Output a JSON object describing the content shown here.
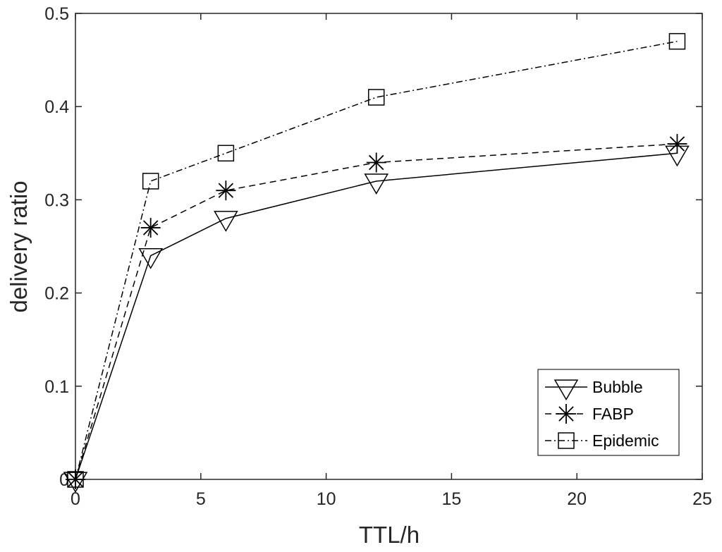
{
  "chart_data": {
    "type": "line",
    "title": "",
    "xlabel": "TTL/h",
    "ylabel": "delivery ratio",
    "xlim": [
      0,
      25
    ],
    "ylim": [
      0,
      0.5
    ],
    "xticks": [
      0,
      5,
      10,
      15,
      20,
      25
    ],
    "yticks": [
      0,
      0.1,
      0.2,
      0.3,
      0.4,
      0.5
    ],
    "xtick_labels": [
      "0",
      "5",
      "10",
      "15",
      "20",
      "25"
    ],
    "ytick_labels": [
      "0",
      "0.1",
      "0.2",
      "0.3",
      "0.4",
      "0.5"
    ],
    "grid": false,
    "legend_position": "bottom-right",
    "x": [
      0,
      3,
      6,
      12,
      24
    ],
    "series": [
      {
        "name": "Bubble",
        "values": [
          0,
          0.24,
          0.28,
          0.32,
          0.35
        ],
        "marker": "triangle-down",
        "line_style": "solid",
        "color": "#000000"
      },
      {
        "name": "FABP",
        "values": [
          0,
          0.27,
          0.31,
          0.34,
          0.36
        ],
        "marker": "asterisk",
        "line_style": "dashed",
        "color": "#000000"
      },
      {
        "name": "Epidemic",
        "values": [
          0,
          0.32,
          0.35,
          0.41,
          0.47
        ],
        "marker": "square",
        "line_style": "dash-dot",
        "color": "#000000"
      }
    ]
  }
}
